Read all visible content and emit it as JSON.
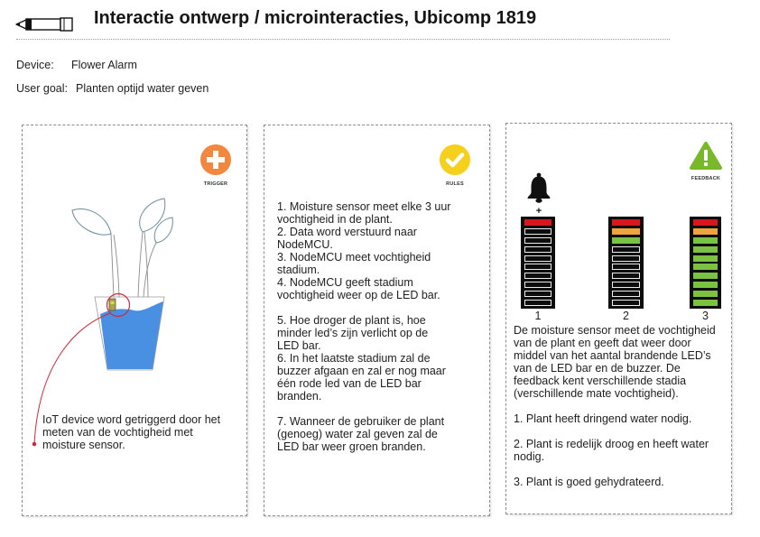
{
  "header": {
    "title": "Interactie ontwerp / microinteracties, Ubicomp 1819",
    "icon": "pen-icon"
  },
  "meta": {
    "device_label": "Device:",
    "device_value": "Flower Alarm",
    "goal_label": "User goal:",
    "goal_value": "Planten optijd water geven"
  },
  "trigger": {
    "label": "TRIGGER",
    "icon": "plus-icon",
    "color": "#f2883f",
    "water_color": "#4a90e2",
    "highlight_color": "#d0283c",
    "description": "IoT device word getriggerd door het\nmeten van de vochtigheid met\nmoisture sensor."
  },
  "rules": {
    "label": "RULES",
    "icon": "check-icon",
    "color": "#f5d11e",
    "groups": [
      [
        "1. Moisture sensor meet elke 3 uur\nvochtigheid in de plant.",
        "2. Data word verstuurd naar\nNodeMCU.",
        "3. NodeMCU meet vochtigheid\nstadium.",
        "4. NodeMCU geeft stadium\nvochtigheid weer op de LED bar."
      ],
      [
        "5. Hoe droger de plant is, hoe\nminder led’s zijn verlicht op de\nLED bar.",
        "6. In het laatste stadium zal de\nbuzzer afgaan en zal er nog maar\néén rode led van de LED bar\nbranden."
      ],
      [
        "7. Wanneer de gebruiker de plant\n(genoeg) water zal geven zal de\nLED bar weer groen branden."
      ]
    ]
  },
  "feedback": {
    "label": "FEEDBACK",
    "icon": "warning-icon",
    "color": "#79b82b",
    "bell_icon": "bell-icon",
    "bell_symbol": "+",
    "led_bars": {
      "segments": 10,
      "colors": {
        "red": "#d8161d",
        "orange": "#f4a23a",
        "green": "#7cc242",
        "off": "#0d0d0d"
      },
      "bars": [
        {
          "label": "1",
          "lit": [
            "red"
          ]
        },
        {
          "label": "2",
          "lit": [
            "red",
            "orange",
            "green"
          ]
        },
        {
          "label": "3",
          "lit": [
            "red",
            "orange",
            "green",
            "green",
            "green",
            "green",
            "green",
            "green",
            "green",
            "green"
          ]
        }
      ]
    },
    "paragraphs": [
      "De moisture sensor meet de vochtigheid\nvan de plant en geeft dat weer door\nmiddel van het aantal brandende LED’s\nvan de LED bar en de buzzer. De\nfeedback kent verschillende stadia\n(verschillende mate vochtigheid).",
      "1. Plant heeft dringend water nodig.",
      "2. Plant is redelijk droog en heeft water\nnodig.",
      "3. Plant is goed gehydrateerd."
    ]
  }
}
